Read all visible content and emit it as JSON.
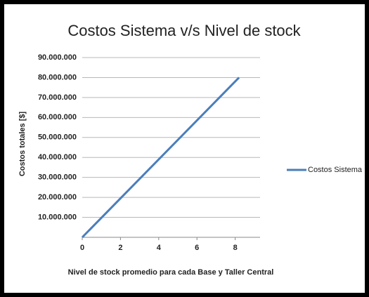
{
  "chart_data": {
    "type": "line",
    "title": "Costos Sistema v/s Nivel de stock",
    "x_label": "Nivel de stock promedio para cada Base y Taller Central",
    "y_label": "Costos totales [$]",
    "x": [
      0,
      8.2
    ],
    "series": [
      {
        "name": "Costos Sistema",
        "color": "#4a7ebb",
        "values": [
          0,
          80000000
        ]
      }
    ],
    "xlim": [
      0,
      9.3
    ],
    "xticks": [
      0,
      2,
      4,
      6,
      8
    ],
    "ylim": [
      0,
      90000000
    ],
    "yticks": [
      {
        "value": 10000000,
        "label": "10.000.000"
      },
      {
        "value": 20000000,
        "label": "20.000.000"
      },
      {
        "value": 30000000,
        "label": "30.000.000"
      },
      {
        "value": 40000000,
        "label": "40.000.000"
      },
      {
        "value": 50000000,
        "label": "50.000.000"
      },
      {
        "value": 60000000,
        "label": "60.000.000"
      },
      {
        "value": 70000000,
        "label": "70.000.000"
      },
      {
        "value": 80000000,
        "label": "80.000.000"
      },
      {
        "value": 90000000,
        "label": "90.000.000"
      }
    ],
    "grid": true,
    "legend": "right"
  }
}
